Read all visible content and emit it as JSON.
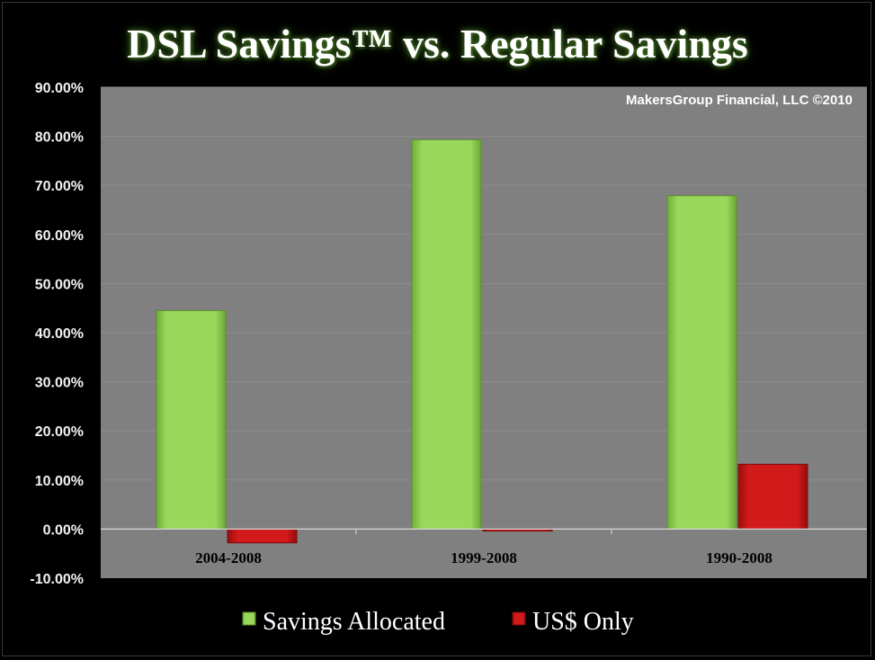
{
  "chart_data": {
    "type": "bar",
    "title": "DSL Savings™ vs. Regular Savings",
    "annotation": "MakersGroup Financial, LLC ©2010",
    "categories": [
      "2004-2008",
      "1999-2008",
      "1990-2008"
    ],
    "series": [
      {
        "name": "Savings Allocated",
        "color": "#8fcf50",
        "values": [
          44.5,
          79.3,
          67.9
        ]
      },
      {
        "name": "US$ Only",
        "color": "#c41414",
        "values": [
          -2.8,
          -0.4,
          13.2
        ]
      }
    ],
    "ylim": [
      -10,
      90
    ],
    "yticks": [
      90,
      80,
      70,
      60,
      50,
      40,
      30,
      20,
      10,
      0,
      -10
    ],
    "ytick_labels": [
      "90.00%",
      "80.00%",
      "70.00%",
      "60.00%",
      "50.00%",
      "40.00%",
      "30.00%",
      "20.00%",
      "10.00%",
      "0.00%",
      "-10.00%"
    ],
    "grid": true,
    "legend_position": "bottom",
    "plot_background": "#7f7f7f"
  }
}
